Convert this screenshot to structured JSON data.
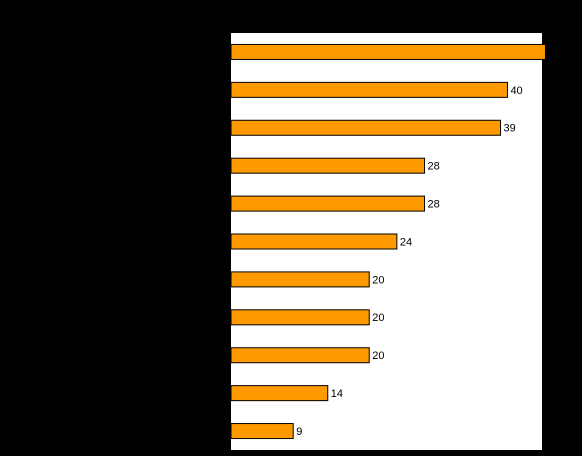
{
  "chart_data": {
    "type": "bar",
    "orientation": "horizontal",
    "categories": [
      null,
      null,
      null,
      null,
      null,
      null,
      null,
      null,
      null,
      null,
      null
    ],
    "values": [
      45.5,
      40,
      39,
      28,
      28,
      24,
      20,
      20,
      20,
      14,
      9
    ],
    "color": "#ff9900",
    "xlim": [
      0,
      45
    ]
  }
}
